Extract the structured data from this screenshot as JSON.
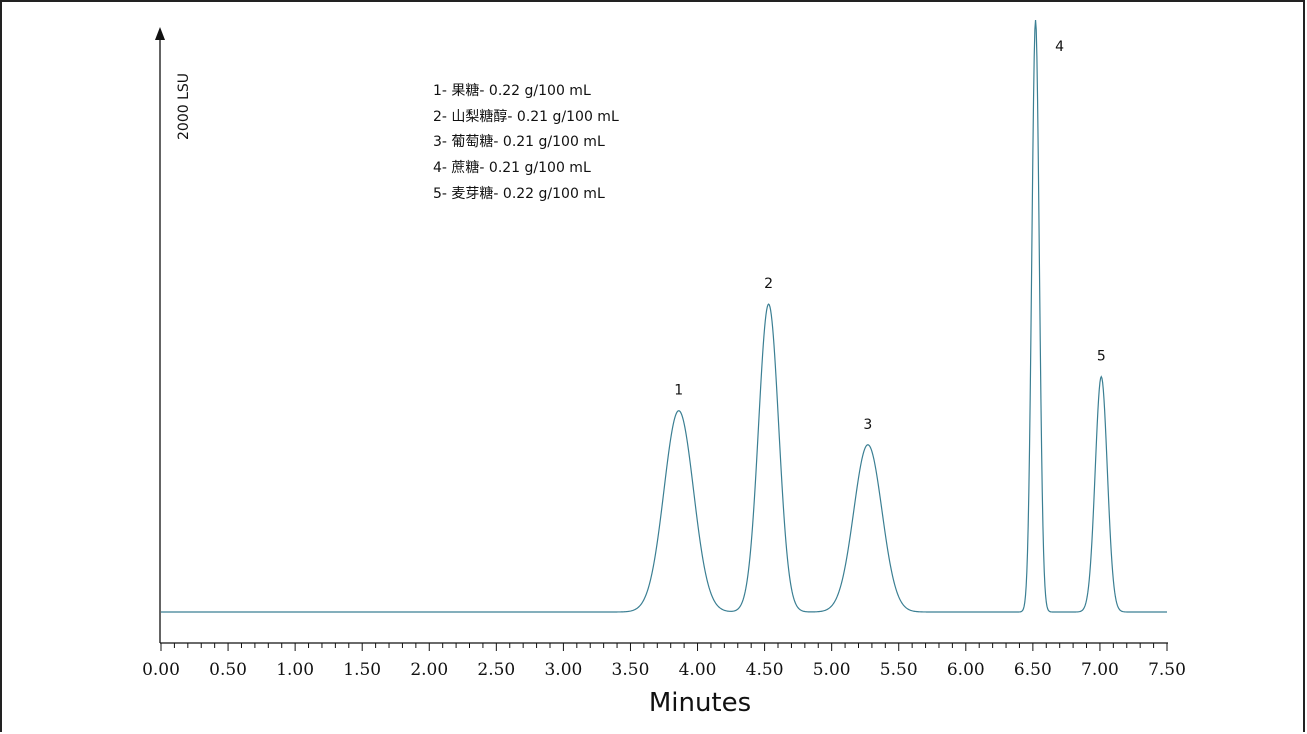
{
  "chart_data": {
    "type": "line",
    "title": "",
    "xlabel": "Minutes",
    "ylabel": "2000 LSU",
    "xlim": [
      0.0,
      7.5
    ],
    "ylim": [
      0,
      2000
    ],
    "x_ticks": [
      "0.00",
      "0.50",
      "1.00",
      "1.50",
      "2.00",
      "2.50",
      "3.00",
      "3.50",
      "4.00",
      "4.50",
      "5.00",
      "5.50",
      "6.00",
      "6.50",
      "7.00",
      "7.50"
    ],
    "x_tick_values": [
      0.0,
      0.5,
      1.0,
      1.5,
      2.0,
      2.5,
      3.0,
      3.5,
      4.0,
      4.5,
      5.0,
      5.5,
      6.0,
      6.5,
      7.0,
      7.5
    ],
    "minor_tick_step": 0.1,
    "baseline": 0,
    "series": [
      {
        "color": "#3b7f93",
        "peaks": [
          {
            "label": "1",
            "rt": 3.86,
            "height": 680,
            "sigma": 0.11
          },
          {
            "label": "2",
            "rt": 4.53,
            "height": 1040,
            "sigma": 0.075
          },
          {
            "label": "3",
            "rt": 5.27,
            "height": 565,
            "sigma": 0.105
          },
          {
            "label": "4",
            "rt": 6.52,
            "height": 2000,
            "sigma": 0.028
          },
          {
            "label": "5",
            "rt": 7.01,
            "height": 795,
            "sigma": 0.045
          }
        ]
      }
    ],
    "legend_entries": [
      "1- 果糖- 0.22 g/100 mL",
      "2- 山梨糖醇- 0.21 g/100 mL",
      "3- 葡萄糖- 0.21 g/100 mL",
      "4- 蔗糖- 0.21 g/100 mL",
      "5- 麦芽糖- 0.22 g/100 mL"
    ],
    "legend_placement": "top-left",
    "grid": false
  }
}
